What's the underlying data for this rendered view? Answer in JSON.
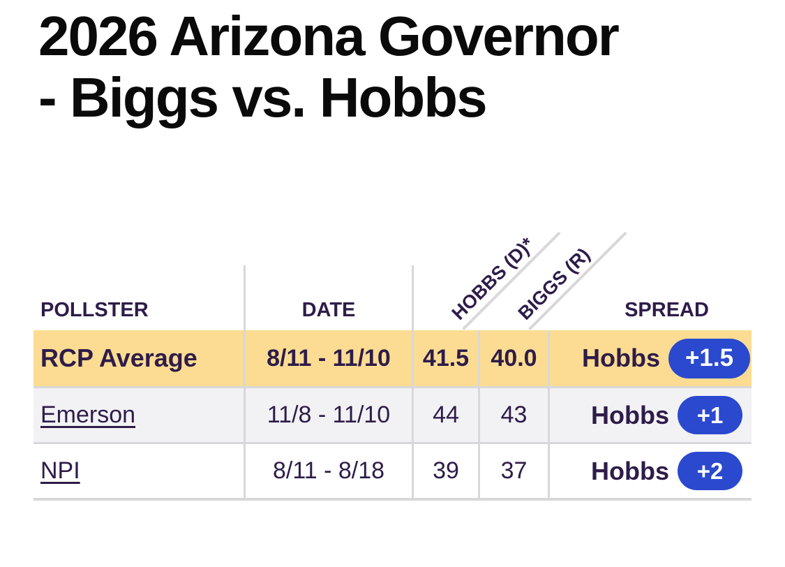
{
  "page": {
    "title_line1": "2026 Arizona Governor",
    "title_line2": "- Biggs vs. Hobbs"
  },
  "colors": {
    "highlight_row_yellow": "#fbdc92",
    "alt_row_gray": "#f2f2f4",
    "spread_pill_blue": "#2b49ce",
    "text_purple": "#2e1c49",
    "divider_gray": "#d8d8da",
    "title_black": "#0a0a0a",
    "pill_text_white": "#ffffff"
  },
  "table": {
    "headers": {
      "pollster": "POLLSTER",
      "date": "DATE",
      "candidate_dem": "HOBBS (D)*",
      "candidate_rep": "BIGGS (R)",
      "spread": "SPREAD"
    },
    "rows": [
      {
        "pollster": "RCP Average",
        "date": "8/11 - 11/10",
        "dem": "41.5",
        "rep": "40.0",
        "leader": "Hobbs",
        "margin": "+1.5"
      },
      {
        "pollster": "Emerson",
        "date": "11/8 - 11/10",
        "dem": "44",
        "rep": "43",
        "leader": "Hobbs",
        "margin": "+1"
      },
      {
        "pollster": "NPI",
        "date": "8/11 - 8/18",
        "dem": "39",
        "rep": "37",
        "leader": "Hobbs",
        "margin": "+2"
      }
    ]
  }
}
